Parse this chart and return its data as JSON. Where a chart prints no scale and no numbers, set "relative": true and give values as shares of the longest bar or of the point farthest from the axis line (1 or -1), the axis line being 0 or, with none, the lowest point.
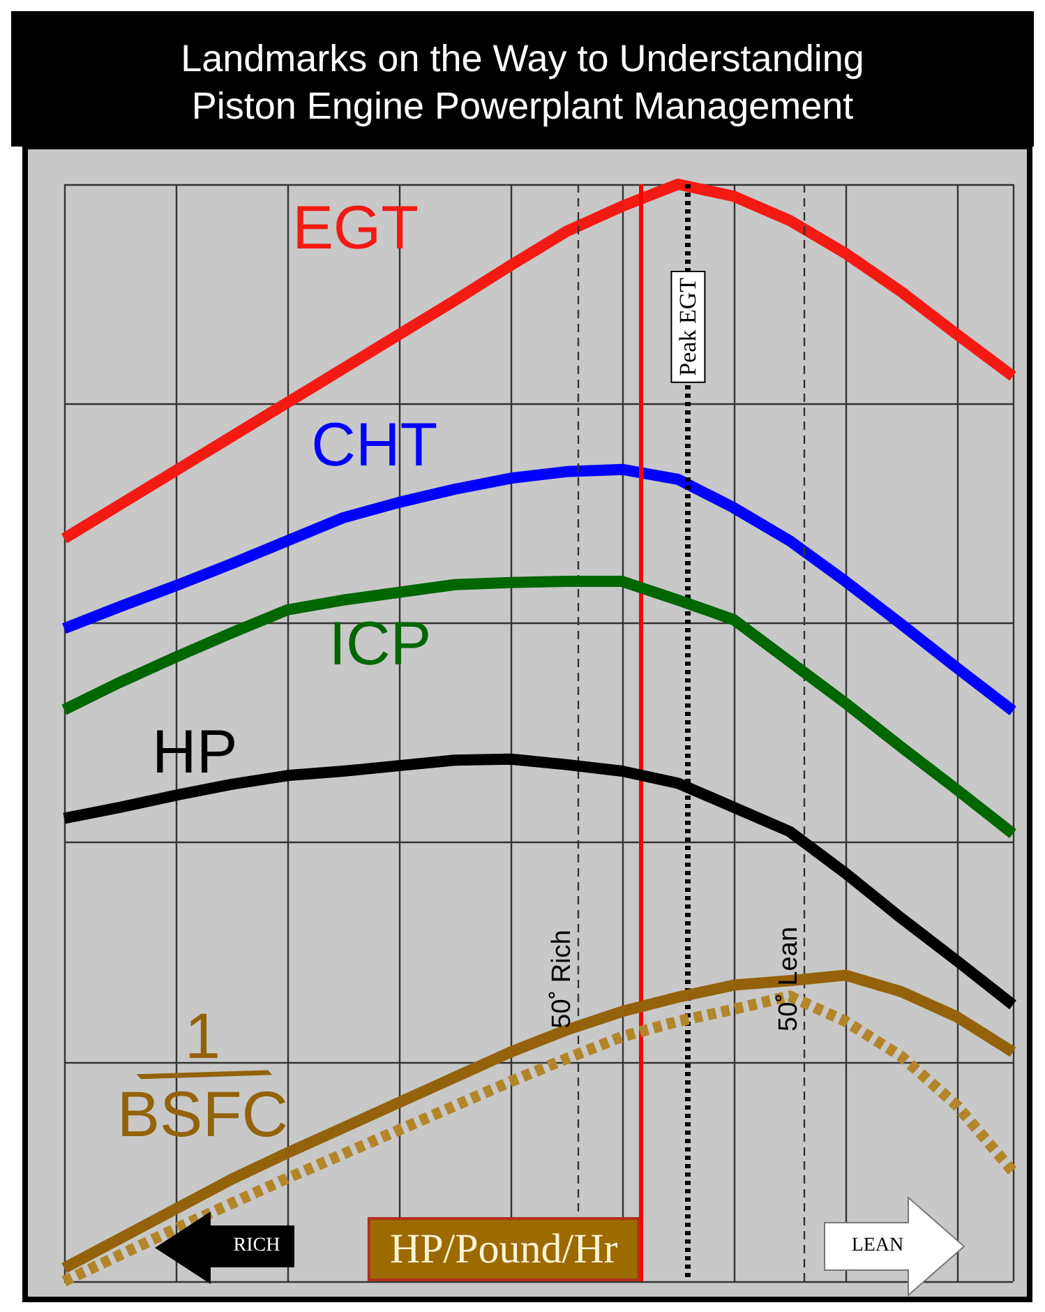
{
  "chart_data": {
    "type": "line",
    "title": "Landmarks on the Way to Understanding\nPiston Engine Powerplant Management",
    "relative": true,
    "categories": [
      null,
      null,
      null,
      null,
      null,
      null,
      null,
      null,
      null,
      null,
      null,
      null,
      null,
      null,
      null,
      null,
      null,
      null
    ],
    "grid": true,
    "legend": false,
    "marker": "none",
    "line_style": "solid",
    "series": [
      {
        "name": "EGT",
        "color": "#f41a14",
        "values": [
          0.677,
          0.708,
          0.739,
          0.77,
          0.801,
          0.832,
          0.863,
          0.894,
          0.926,
          0.957,
          0.98,
          1.0,
          0.989,
          0.967,
          0.937,
          0.902,
          0.863,
          0.825
        ]
      },
      {
        "name": "CHT",
        "color": "#0000ff",
        "values": [
          0.595,
          0.615,
          0.634,
          0.654,
          0.675,
          0.696,
          0.71,
          0.722,
          0.732,
          0.738,
          0.74,
          0.731,
          0.705,
          0.675,
          0.638,
          0.599,
          0.559,
          0.52
        ]
      },
      {
        "name": "ICP",
        "color": "#006600",
        "values": [
          0.521,
          0.546,
          0.569,
          0.591,
          0.612,
          0.621,
          0.628,
          0.635,
          0.637,
          0.638,
          0.638,
          0.621,
          0.603,
          0.565,
          0.527,
          0.487,
          0.448,
          0.408
        ]
      },
      {
        "name": "HP",
        "color": "#000000",
        "values": [
          0.422,
          0.432,
          0.443,
          0.453,
          0.461,
          0.465,
          0.47,
          0.475,
          0.476,
          0.471,
          0.465,
          0.454,
          0.432,
          0.41,
          0.372,
          0.331,
          0.292,
          0.252
        ]
      },
      {
        "name": "1/BSFC",
        "color": "#94620a",
        "values": [
          0.012,
          0.039,
          0.066,
          0.093,
          0.117,
          0.14,
          0.163,
          0.186,
          0.209,
          0.229,
          0.246,
          0.259,
          0.27,
          0.274,
          0.279,
          0.264,
          0.241,
          0.209
        ]
      },
      {
        "color": "#b3852a",
        "line_style": "dashed",
        "values": [
          0.0,
          0.024,
          0.048,
          0.071,
          0.094,
          0.116,
          0.138,
          0.16,
          0.182,
          0.203,
          0.223,
          0.237,
          0.248,
          0.26,
          0.237,
          0.205,
          0.16,
          0.1
        ]
      }
    ],
    "annotations": [
      "50˚ Rich",
      "Peak EGT",
      "50˚ Lean",
      "HP/Pound/Hr",
      "RICH",
      "LEAN"
    ]
  }
}
